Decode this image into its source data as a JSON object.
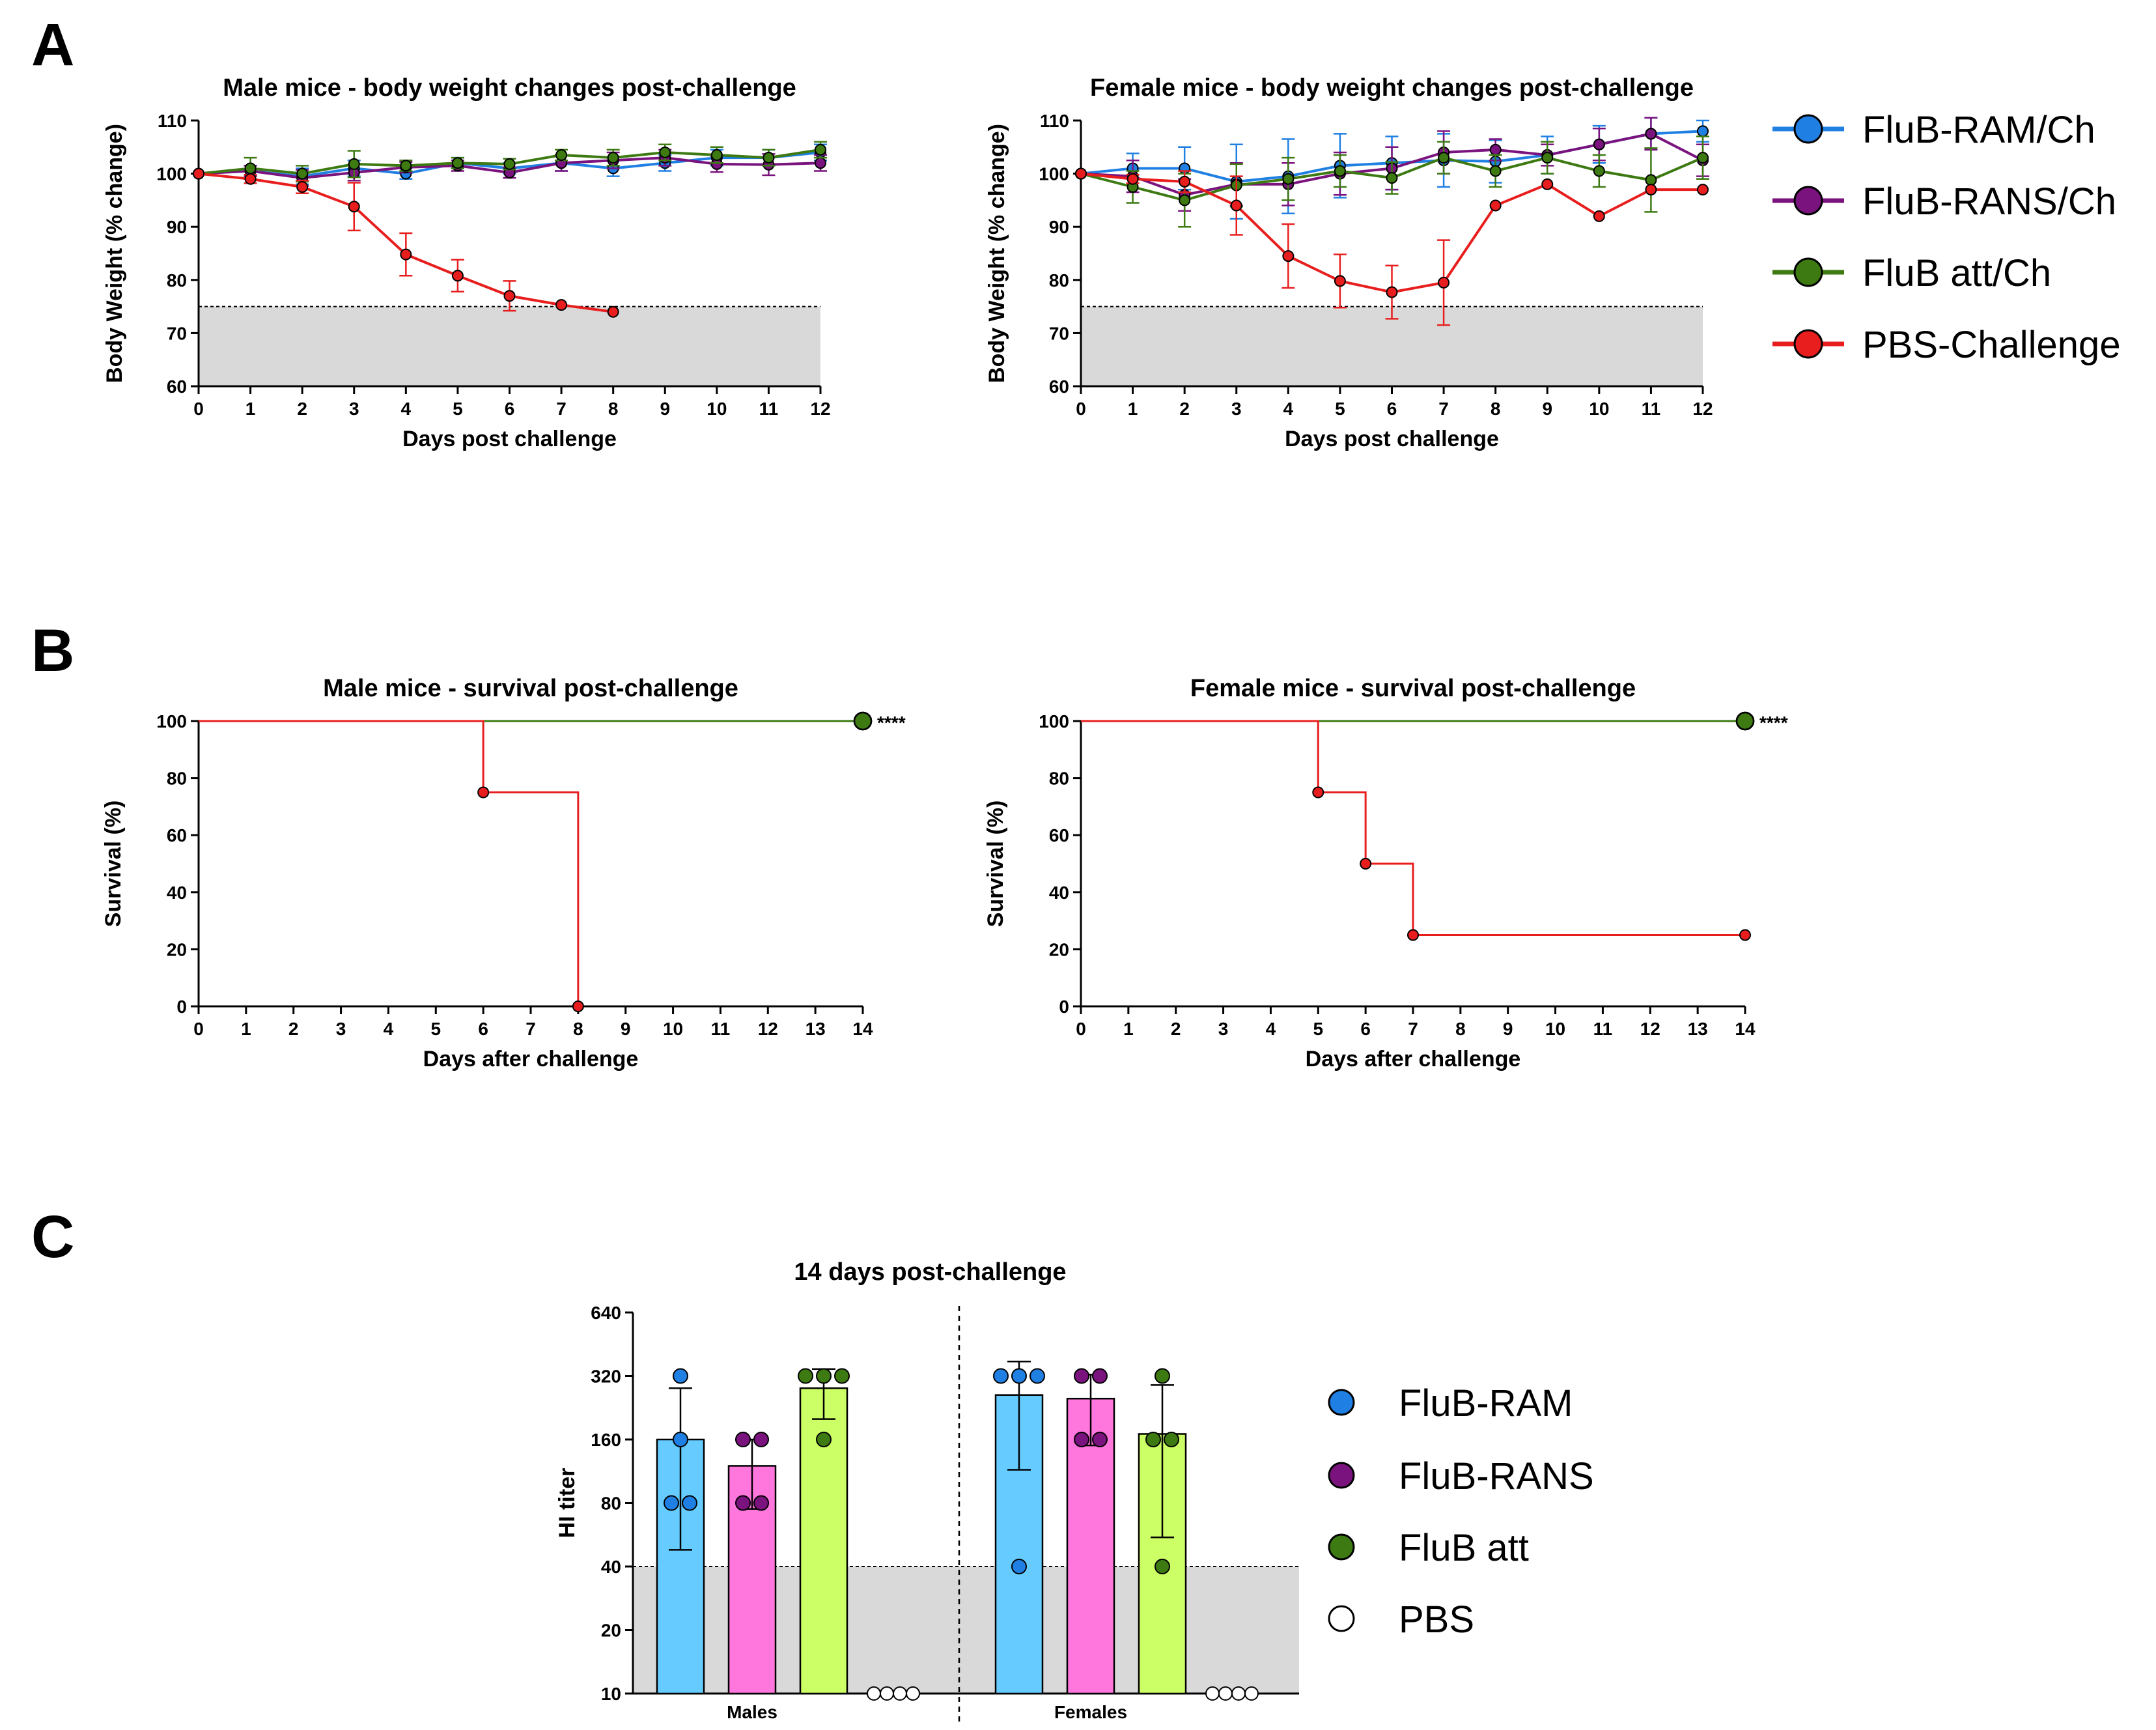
{
  "figure": {
    "panel_letters": [
      "A",
      "B",
      "C"
    ],
    "colors": {
      "ram": "#1f7fe3",
      "rans": "#7a137e",
      "att": "#3d7a12",
      "pbs": "#e81e1e",
      "bar_ram": "#66ccff",
      "bar_rans": "#ff77dd",
      "bar_att": "#ccff66",
      "shade": "#d9d9d9"
    }
  },
  "legends": {
    "panelA": [
      "FluB-RAM/Ch",
      "FluB-RANS/Ch",
      "FluB att/Ch",
      "PBS-Challenge"
    ],
    "panelC": [
      "FluB-RAM",
      "FluB-RANS",
      "FluB att",
      "PBS"
    ]
  },
  "chart_data": [
    {
      "id": "A1",
      "type": "line",
      "title": "Male mice - body weight changes post-challenge",
      "xlabel": "Days post challenge",
      "ylabel": "Body Weight (% change)",
      "xlim": [
        0,
        12
      ],
      "ylim": [
        60,
        110
      ],
      "xticks": [
        0,
        1,
        2,
        3,
        4,
        5,
        6,
        7,
        8,
        9,
        10,
        11,
        12
      ],
      "yticks": [
        60,
        70,
        80,
        90,
        100,
        110
      ],
      "threshold": 75,
      "series": [
        {
          "name": "FluB-RAM/Ch",
          "color": "ram",
          "x": [
            0,
            1,
            2,
            3,
            4,
            5,
            6,
            7,
            8,
            9,
            10,
            11,
            12
          ],
          "y": [
            100,
            100.5,
            99.5,
            101,
            100,
            102,
            101,
            102,
            101,
            102,
            103,
            103,
            104
          ],
          "err": [
            0,
            1,
            1.5,
            1.5,
            1,
            1,
            1,
            1.5,
            1.5,
            1.5,
            1.5,
            1.5,
            1.5
          ]
        },
        {
          "name": "FluB-RANS/Ch",
          "color": "rans",
          "x": [
            0,
            1,
            2,
            3,
            4,
            5,
            6,
            7,
            8,
            9,
            10,
            11,
            12
          ],
          "y": [
            100,
            100.5,
            99.2,
            100.2,
            101.2,
            101.5,
            100.2,
            102,
            102.5,
            103,
            101.8,
            101.7,
            102
          ],
          "err": [
            0,
            1,
            1.5,
            1.5,
            1,
            1,
            1,
            1.5,
            1.5,
            1.5,
            1.5,
            2,
            1.5
          ]
        },
        {
          "name": "FluB att/Ch",
          "color": "att",
          "x": [
            0,
            1,
            2,
            3,
            4,
            5,
            6,
            7,
            8,
            9,
            10,
            11,
            12
          ],
          "y": [
            100,
            101,
            100,
            101.8,
            101.5,
            102,
            101.8,
            103.5,
            103,
            104,
            103.5,
            103,
            104.5
          ],
          "err": [
            0,
            2,
            1.5,
            2.5,
            1,
            1,
            1,
            1,
            1.5,
            1.5,
            1.5,
            1.5,
            1.5
          ]
        },
        {
          "name": "PBS-Challenge",
          "color": "pbs",
          "x": [
            0,
            1,
            2,
            3,
            4,
            5,
            6,
            7,
            8
          ],
          "y": [
            100,
            99,
            97.5,
            93.8,
            84.8,
            80.8,
            77,
            75.3,
            74
          ],
          "err": [
            0,
            0.8,
            1.2,
            4.5,
            4,
            3,
            2.8,
            0,
            0
          ]
        }
      ]
    },
    {
      "id": "A2",
      "type": "line",
      "title": "Female mice - body weight changes post-challenge",
      "xlabel": "Days post challenge",
      "ylabel": "Body Weight (% change)",
      "xlim": [
        0,
        12
      ],
      "ylim": [
        60,
        110
      ],
      "xticks": [
        0,
        1,
        2,
        3,
        4,
        5,
        6,
        7,
        8,
        9,
        10,
        11,
        12
      ],
      "yticks": [
        60,
        70,
        80,
        90,
        100,
        110
      ],
      "threshold": 75,
      "series": [
        {
          "name": "FluB-RAM/Ch",
          "color": "ram",
          "x": [
            0,
            1,
            2,
            3,
            4,
            5,
            6,
            7,
            8,
            9,
            10,
            11,
            12
          ],
          "y": [
            100,
            101,
            101,
            98.5,
            99.5,
            101.5,
            102,
            102.5,
            102.3,
            103.5,
            105.5,
            107.5,
            108
          ],
          "err": [
            0,
            2.8,
            4,
            7,
            7,
            6,
            5,
            5,
            4,
            3.5,
            3.5,
            3,
            2
          ]
        },
        {
          "name": "FluB-RANS/Ch",
          "color": "rans",
          "x": [
            0,
            1,
            2,
            3,
            4,
            5,
            6,
            7,
            8,
            9,
            10,
            11,
            12
          ],
          "y": [
            100,
            99.5,
            96,
            98,
            98,
            100,
            101,
            104,
            104.5,
            103.5,
            105.5,
            107.5,
            102.5
          ],
          "err": [
            0,
            3,
            3,
            4,
            4,
            4,
            4,
            4,
            2,
            2,
            3,
            3,
            3
          ]
        },
        {
          "name": "FluB att/Ch",
          "color": "att",
          "x": [
            0,
            1,
            2,
            3,
            4,
            5,
            6,
            7,
            8,
            9,
            10,
            11,
            12
          ],
          "y": [
            100,
            97.5,
            95,
            97.8,
            99,
            100.5,
            99.2,
            103,
            100.5,
            103,
            100.5,
            98.8,
            103
          ],
          "err": [
            0,
            3,
            5,
            4,
            4,
            3,
            3,
            3,
            3,
            3,
            3,
            6,
            4
          ]
        },
        {
          "name": "PBS-Challenge",
          "color": "pbs",
          "x": [
            0,
            1,
            2,
            3,
            4,
            5,
            6,
            7,
            8,
            9,
            10,
            11,
            12
          ],
          "y": [
            100,
            99,
            98.5,
            94,
            84.5,
            79.8,
            77.7,
            79.5,
            94,
            98,
            92,
            97,
            97
          ],
          "err": [
            0,
            0.8,
            2,
            5.5,
            6,
            5,
            5,
            8,
            0,
            0,
            0,
            0,
            0
          ]
        }
      ]
    },
    {
      "id": "B1",
      "type": "line",
      "title": "Male mice - survival post-challenge",
      "xlabel": "Days after challenge",
      "ylabel": "Survival (%)",
      "xlim": [
        0,
        14
      ],
      "ylim": [
        0,
        100
      ],
      "xticks": [
        0,
        1,
        2,
        3,
        4,
        5,
        6,
        7,
        8,
        9,
        10,
        11,
        12,
        13,
        14
      ],
      "yticks": [
        0,
        20,
        40,
        60,
        80,
        100
      ],
      "significance": "****",
      "series": [
        {
          "name": "FluB-RAM/Ch",
          "color": "ram",
          "x": [
            0,
            14
          ],
          "y": [
            100,
            100
          ]
        },
        {
          "name": "FluB-RANS/Ch",
          "color": "rans",
          "x": [
            0,
            14
          ],
          "y": [
            100,
            100
          ]
        },
        {
          "name": "FluB att/Ch",
          "color": "att",
          "x": [
            0,
            14
          ],
          "y": [
            100,
            100
          ]
        },
        {
          "name": "PBS-Challenge",
          "color": "pbs",
          "x": [
            0,
            6,
            8
          ],
          "y": [
            100,
            75,
            0
          ]
        }
      ]
    },
    {
      "id": "B2",
      "type": "line",
      "title": "Female mice - survival post-challenge",
      "xlabel": "Days after challenge",
      "ylabel": "Survival (%)",
      "xlim": [
        0,
        14
      ],
      "ylim": [
        0,
        100
      ],
      "xticks": [
        0,
        1,
        2,
        3,
        4,
        5,
        6,
        7,
        8,
        9,
        10,
        11,
        12,
        13,
        14
      ],
      "yticks": [
        0,
        20,
        40,
        60,
        80,
        100
      ],
      "significance": "****",
      "series": [
        {
          "name": "FluB-RAM/Ch",
          "color": "ram",
          "x": [
            0,
            14
          ],
          "y": [
            100,
            100
          ]
        },
        {
          "name": "FluB-RANS/Ch",
          "color": "rans",
          "x": [
            0,
            14
          ],
          "y": [
            100,
            100
          ]
        },
        {
          "name": "FluB att/Ch",
          "color": "att",
          "x": [
            0,
            14
          ],
          "y": [
            100,
            100
          ]
        },
        {
          "name": "PBS-Challenge",
          "color": "pbs",
          "x": [
            0,
            5,
            6,
            7,
            14
          ],
          "y": [
            100,
            75,
            50,
            25,
            25
          ]
        }
      ]
    },
    {
      "id": "C",
      "type": "bar",
      "title": "14 days post-challenge",
      "ylabel": "HI titer",
      "yscale": "log2",
      "ylim": [
        10,
        640
      ],
      "yticks": [
        10,
        20,
        40,
        80,
        160,
        320,
        640
      ],
      "threshold": 40,
      "categories": [
        "Males",
        "Females"
      ],
      "groups": [
        {
          "category": "Males",
          "name": "FluB-RAM",
          "color": "bar_ram",
          "dot": "ram",
          "mean": 160,
          "sd_low": 48,
          "sd_high": 280,
          "points": [
            80,
            160,
            80,
            320
          ]
        },
        {
          "category": "Males",
          "name": "FluB-RANS",
          "color": "bar_rans",
          "dot": "rans",
          "mean": 120,
          "sd_low": 75,
          "sd_high": 160,
          "points": [
            80,
            160,
            80,
            160
          ]
        },
        {
          "category": "Males",
          "name": "FluB att",
          "color": "bar_att",
          "dot": "att",
          "mean": 280,
          "sd_low": 200,
          "sd_high": 345,
          "points": [
            320,
            320,
            160,
            320
          ]
        },
        {
          "category": "Males",
          "name": "PBS",
          "color": "",
          "dot": "pbs_white",
          "mean": 10,
          "sd_low": 10,
          "sd_high": 10,
          "points": [
            10,
            10,
            10,
            10
          ]
        },
        {
          "category": "Females",
          "name": "FluB-RAM",
          "color": "bar_ram",
          "dot": "ram",
          "mean": 260,
          "sd_low": 115,
          "sd_high": 375,
          "points": [
            320,
            40,
            320,
            320
          ]
        },
        {
          "category": "Females",
          "name": "FluB-RANS",
          "color": "bar_rans",
          "dot": "rans",
          "mean": 250,
          "sd_low": 150,
          "sd_high": 325,
          "points": [
            160,
            320,
            160,
            320
          ]
        },
        {
          "category": "Females",
          "name": "FluB att",
          "color": "bar_att",
          "dot": "att",
          "mean": 170,
          "sd_low": 55,
          "sd_high": 290,
          "points": [
            160,
            40,
            320,
            160
          ]
        },
        {
          "category": "Females",
          "name": "PBS",
          "color": "",
          "dot": "pbs_white",
          "mean": 10,
          "sd_low": 10,
          "sd_high": 10,
          "points": [
            10,
            10,
            10,
            10
          ]
        }
      ]
    }
  ]
}
